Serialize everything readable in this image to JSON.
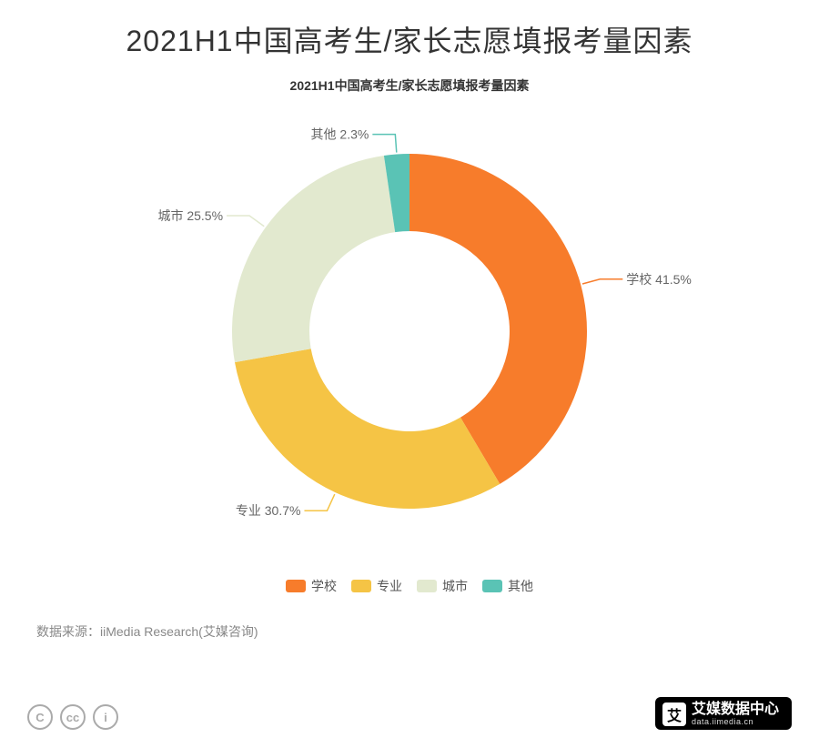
{
  "title": "2021H1中国高考生/家长志愿填报考量因素",
  "subtitle": "2021H1中国高考生/家长志愿填报考量因素",
  "chart": {
    "type": "donut",
    "background_color": "#ffffff",
    "inner_radius": 110,
    "outer_radius": 195,
    "start_angle_deg": 90,
    "direction": "clockwise",
    "series": [
      {
        "name": "学校",
        "value": 41.5,
        "label": "学校 41.5%",
        "color": "#f77c2b"
      },
      {
        "name": "专业",
        "value": 30.7,
        "label": "专业 30.7%",
        "color": "#f5c445"
      },
      {
        "name": "城市",
        "value": 25.5,
        "label": "城市 25.5%",
        "color": "#e2e9cf"
      },
      {
        "name": "其他",
        "value": 2.3,
        "label": "其他 2.3%",
        "color": "#5ac3b5"
      }
    ],
    "label_fontsize": 14,
    "label_color": "#666666",
    "leader_line_color_matches_slice": true
  },
  "legend": {
    "items": [
      {
        "label": "学校",
        "color": "#f77c2b"
      },
      {
        "label": "专业",
        "color": "#f5c445"
      },
      {
        "label": "城市",
        "color": "#e2e9cf"
      },
      {
        "label": "其他",
        "color": "#5ac3b5"
      }
    ]
  },
  "source_text": "数据来源：iiMedia Research(艾媒咨询)",
  "license_icons": [
    "c",
    "cc",
    "i"
  ],
  "brand": {
    "name": "艾媒数据中心",
    "url": "data.iimedia.cn",
    "logo_text": "艾"
  }
}
